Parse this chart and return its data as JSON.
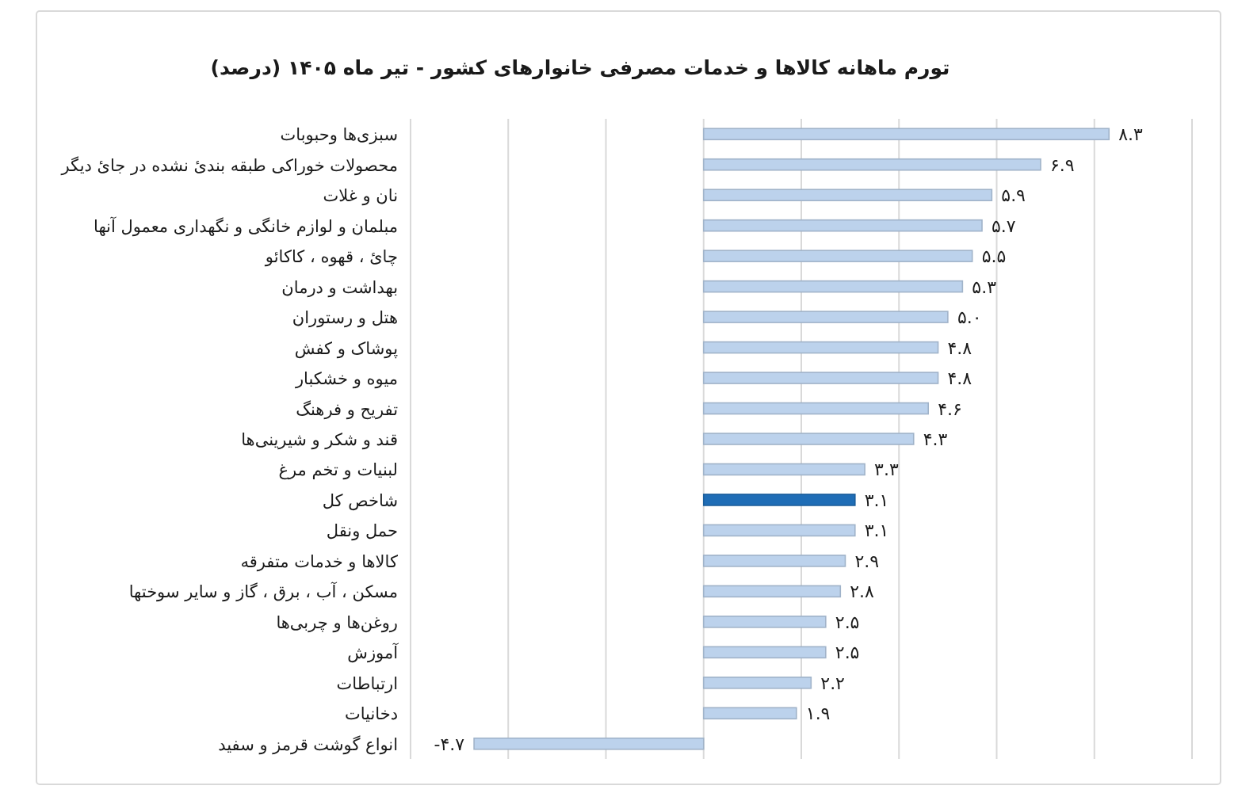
{
  "chart_data": {
    "type": "bar",
    "orientation": "horizontal",
    "title": "تورم ماهانه کالاها و خدمات مصرفی خانوارهای کشور - تیر ماه ۱۴۰۵ (درصد)",
    "categories": [
      "سبزی‌ها وحبوبات",
      "محصولات خوراکی طبقه بندیٔ نشده در جایٔ دیگر",
      "نان و غلات",
      "مبلمان و لوازم خانگی و نگهداری معمول آنها",
      "چایٔ ، قهوه ، کاکائو",
      "بهداشت و درمان",
      "هتل و رستوران",
      "پوشاک و کفش",
      "میوه و خشکبار",
      "تفریح و فرهنگ",
      "قند و شکر و شیرینی‌ها",
      "لبنیات و تخم مرغ",
      "شاخص کل",
      "حمل ونقل",
      "کالاها و خدمات متفرقه",
      "مسکن ، آب ، برق ، گاز و سایر سوختها",
      "روغن‌ها و چربی‌ها",
      "آموزش",
      "ارتباطات",
      "دخانیات",
      "انواع گوشت قرمز و سفید"
    ],
    "values": [
      8.3,
      6.9,
      5.9,
      5.7,
      5.5,
      5.3,
      5.0,
      4.8,
      4.8,
      4.6,
      4.3,
      3.3,
      3.1,
      3.1,
      2.9,
      2.8,
      2.5,
      2.5,
      2.2,
      1.9,
      -4.7
    ],
    "colors": [
      "#bcd2ec",
      "#bcd2ec",
      "#bcd2ec",
      "#bcd2ec",
      "#bcd2ec",
      "#bcd2ec",
      "#bcd2ec",
      "#bcd2ec",
      "#bcd2ec",
      "#bcd2ec",
      "#bcd2ec",
      "#bcd2ec",
      "#1f6db6",
      "#bcd2ec",
      "#bcd2ec",
      "#bcd2ec",
      "#bcd2ec",
      "#bcd2ec",
      "#bcd2ec",
      "#bcd2ec",
      "#bcd2ec"
    ],
    "value_labels": [
      "۸.۳",
      "۶.۹",
      "۵.۹",
      "۵.۷",
      "۵.۵",
      "۵.۳",
      "۵.۰",
      "۴.۸",
      "۴.۸",
      "۴.۶",
      "۴.۳",
      "۳.۳",
      "۳.۱",
      "۳.۱",
      "۲.۹",
      "۲.۸",
      "۲.۵",
      "۲.۵",
      "۲.۲",
      "۱.۹",
      "-۴.۷"
    ],
    "xlim": [
      -6,
      10
    ],
    "xticks": [
      {
        "value": -6,
        "label": null
      },
      {
        "value": -4,
        "label": null
      },
      {
        "value": -2,
        "label": null
      },
      {
        "value": 0,
        "label": null
      },
      {
        "value": 2,
        "label": null
      },
      {
        "value": 4,
        "label": null
      },
      {
        "value": 6,
        "label": null
      },
      {
        "value": 8,
        "label": null
      },
      {
        "value": 10,
        "label": null
      }
    ],
    "grid": "x",
    "tick_labels": "y"
  }
}
